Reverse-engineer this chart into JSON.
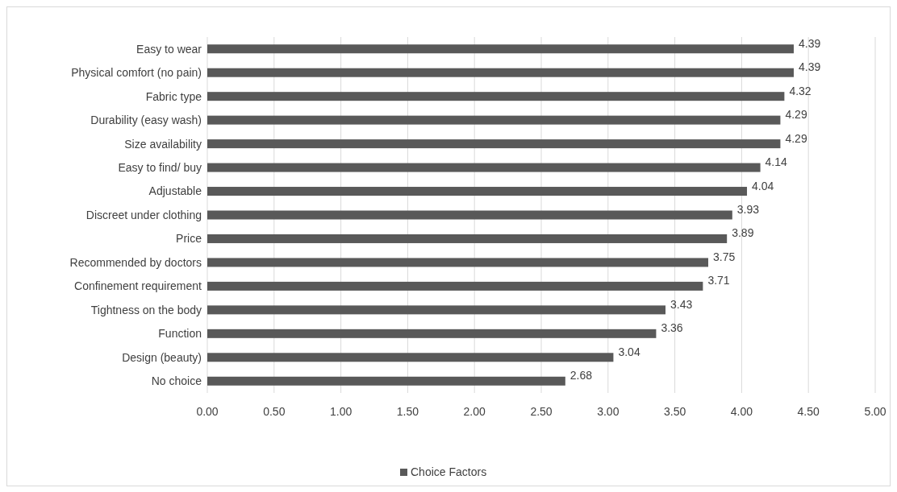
{
  "chart_data": {
    "type": "bar",
    "orientation": "horizontal",
    "categories": [
      "Easy to wear",
      "Physical comfort (no pain)",
      "Fabric type",
      "Durability (easy wash)",
      "Size availability",
      "Easy to find/ buy",
      "Adjustable",
      "Discreet under clothing",
      "Price",
      "Recommended by doctors",
      "Confinement requirement",
      "Tightness on the body",
      "Function",
      "Design (beauty)",
      "No choice"
    ],
    "series": [
      {
        "name": "Choice Factors",
        "color": "#595959",
        "values": [
          4.39,
          4.39,
          4.32,
          4.29,
          4.29,
          4.14,
          4.04,
          3.93,
          3.89,
          3.75,
          3.71,
          3.43,
          3.36,
          3.04,
          2.68
        ]
      }
    ],
    "xlim": [
      0,
      5
    ],
    "xticks": [
      {
        "value": 0,
        "label": "0.00"
      },
      {
        "value": 0.5,
        "label": "0.50"
      },
      {
        "value": 1,
        "label": "1.00"
      },
      {
        "value": 1.5,
        "label": "1.50"
      },
      {
        "value": 2,
        "label": "2.00"
      },
      {
        "value": 2.5,
        "label": "2.50"
      },
      {
        "value": 3,
        "label": "3.00"
      },
      {
        "value": 3.5,
        "label": "3.50"
      },
      {
        "value": 4,
        "label": "4.00"
      },
      {
        "value": 4.5,
        "label": "4.50"
      },
      {
        "value": 5,
        "label": "5.00"
      }
    ],
    "grid": "x",
    "data_labels": true,
    "legend": "bottom"
  }
}
